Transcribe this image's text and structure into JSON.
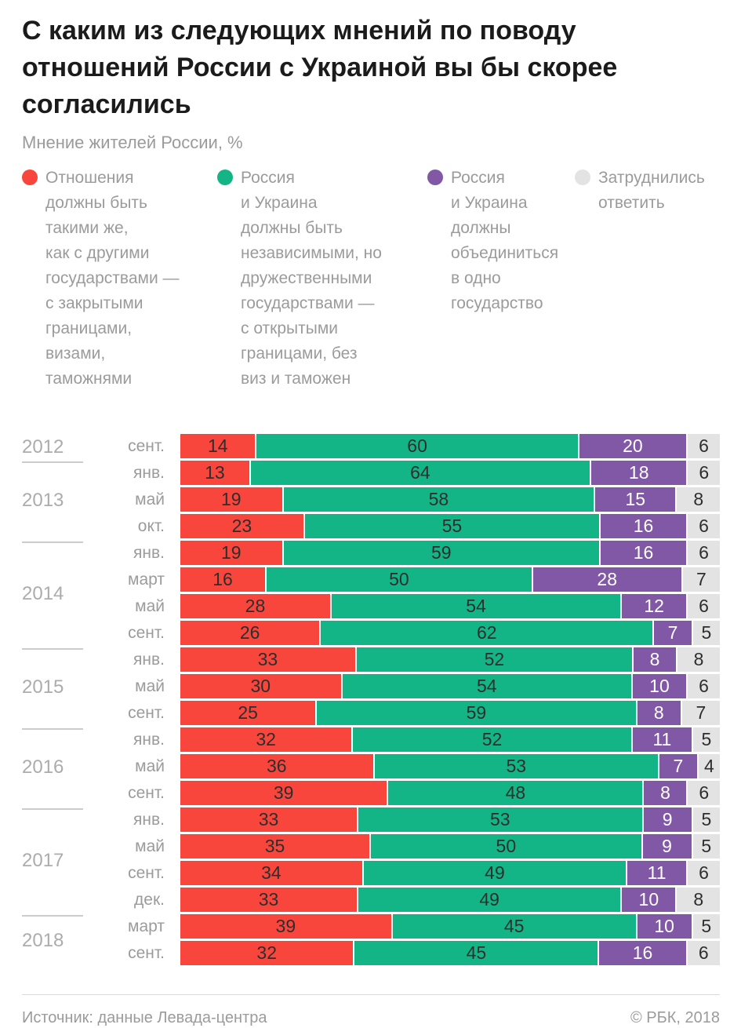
{
  "header": {
    "title": "С каким из следующих мнений по поводу\nотношений России с Украиной вы бы скорее\nсогласились",
    "subtitle": "Мнение жителей России, %"
  },
  "legend": {
    "items": [
      {
        "label": "Отношения\nдолжны быть\nтакими же,\nкак с другими\nгосударствами —\nс закрытыми\nграницами,\nвизами,\nтаможнями",
        "color": "#f8463d",
        "text_color": "#2e2e2e"
      },
      {
        "label": "Россия\nи Украина\nдолжны быть\nнезависимыми, но\nдружественными\nгосударствами —\nс открытыми\nграницами, без\nвиз и таможен",
        "color": "#13b586",
        "text_color": "#2e2e2e"
      },
      {
        "label": "Россия\nи Украина\nдолжны\nобъединиться\nв одно\nгосударство",
        "color": "#8158a5",
        "text_color": "#ffffff"
      },
      {
        "label": "Затруднились\nответить",
        "color": "#e3e3e3",
        "text_color": "#2e2e2e"
      }
    ]
  },
  "chart_data": {
    "type": "bar",
    "stacked": true,
    "orientation": "horizontal",
    "unit": "%",
    "xlim": [
      0,
      100
    ],
    "title": "С каким из следующих мнений по поводу отношений России с Украиной вы бы скорее согласились",
    "subtitle": "Мнение жителей России, %",
    "legend_position": "top",
    "series": [
      "Отношения должны быть такими же, как с другими государствами — с закрытыми границами, визами, таможнями",
      "Россия и Украина должны быть независимыми, но дружественными государствами — с открытыми границами, без виз и таможен",
      "Россия и Украина должны объединиться в одно государство",
      "Затруднились ответить"
    ],
    "segment_names": [
      "same-as-other-states",
      "independent-friendly",
      "unite-one-state",
      "undecided"
    ],
    "groups": [
      {
        "year": "2012",
        "rows": [
          {
            "month": "сент.",
            "values": [
              14,
              60,
              20,
              6
            ]
          }
        ]
      },
      {
        "year": "2013",
        "rows": [
          {
            "month": "янв.",
            "values": [
              13,
              64,
              18,
              6
            ]
          },
          {
            "month": "май",
            "values": [
              19,
              58,
              15,
              8
            ]
          },
          {
            "month": "окт.",
            "values": [
              23,
              55,
              16,
              6
            ]
          }
        ]
      },
      {
        "year": "2014",
        "rows": [
          {
            "month": "янв.",
            "values": [
              19,
              59,
              16,
              6
            ]
          },
          {
            "month": "март",
            "values": [
              16,
              50,
              28,
              7
            ]
          },
          {
            "month": "май",
            "values": [
              28,
              54,
              12,
              6
            ]
          },
          {
            "month": "сент.",
            "values": [
              26,
              62,
              7,
              5
            ]
          }
        ]
      },
      {
        "year": "2015",
        "rows": [
          {
            "month": "янв.",
            "values": [
              33,
              52,
              8,
              8
            ]
          },
          {
            "month": "май",
            "values": [
              30,
              54,
              10,
              6
            ]
          },
          {
            "month": "сент.",
            "values": [
              25,
              59,
              8,
              7
            ]
          }
        ]
      },
      {
        "year": "2016",
        "rows": [
          {
            "month": "янв.",
            "values": [
              32,
              52,
              11,
              5
            ]
          },
          {
            "month": "май",
            "values": [
              36,
              53,
              7,
              4
            ]
          },
          {
            "month": "сент.",
            "values": [
              39,
              48,
              8,
              6
            ]
          }
        ]
      },
      {
        "year": "2017",
        "rows": [
          {
            "month": "янв.",
            "values": [
              33,
              53,
              9,
              5
            ]
          },
          {
            "month": "май",
            "values": [
              35,
              50,
              9,
              5
            ]
          },
          {
            "month": "сент.",
            "values": [
              34,
              49,
              11,
              6
            ]
          },
          {
            "month": "дек.",
            "values": [
              33,
              49,
              10,
              8
            ]
          }
        ]
      },
      {
        "year": "2018",
        "rows": [
          {
            "month": "март",
            "values": [
              39,
              45,
              10,
              5
            ]
          },
          {
            "month": "сент.",
            "values": [
              32,
              45,
              16,
              6
            ]
          }
        ]
      }
    ]
  },
  "footer": {
    "source": "Источник: данные Левада-центра",
    "copyright": "© РБК, 2018"
  }
}
